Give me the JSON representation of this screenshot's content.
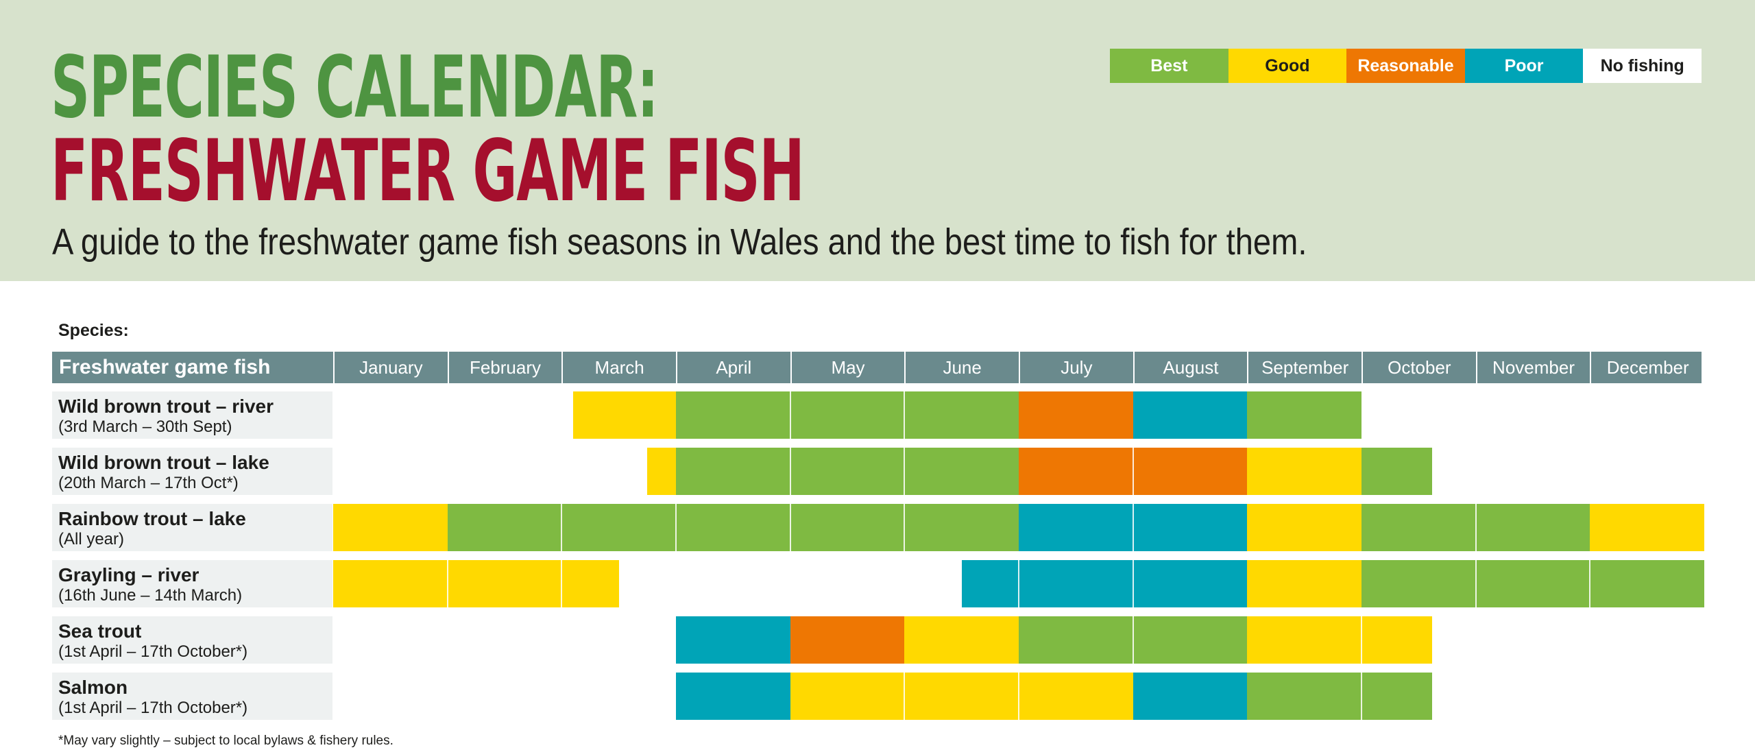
{
  "title": {
    "line1": "SPECIES CALENDAR:",
    "line2": "FRESHWATER GAME FISH",
    "subtitle": "A guide to the freshwater game fish seasons in Wales and the best time to fish for them."
  },
  "legend": [
    {
      "key": "best",
      "label": "Best",
      "color": "#7fba42"
    },
    {
      "key": "good",
      "label": "Good",
      "color": "#ffd900"
    },
    {
      "key": "reasonable",
      "label": "Reasonable",
      "color": "#ee7703"
    },
    {
      "key": "poor",
      "label": "Poor",
      "color": "#00a4b7"
    },
    {
      "key": "none",
      "label": "No fishing",
      "color": "#ffffff"
    }
  ],
  "species_label": "Species:",
  "footnote": "*May vary slightly – subject to local bylaws & fishery rules.",
  "chart_data": {
    "type": "table",
    "header_title": "Freshwater game fish",
    "months": [
      "January",
      "February",
      "March",
      "April",
      "May",
      "June",
      "July",
      "August",
      "September",
      "October",
      "November",
      "December"
    ],
    "x_unit": "month of year (1 = start of January, 13 = end of December)",
    "rows": [
      {
        "name": "Wild brown trout – river",
        "dates": "(3rd March – 30th Sept)",
        "segments": [
          {
            "from": 3.1,
            "to": 4,
            "rating": "good"
          },
          {
            "from": 4,
            "to": 7,
            "rating": "best"
          },
          {
            "from": 7,
            "to": 8,
            "rating": "reasonable"
          },
          {
            "from": 8,
            "to": 9,
            "rating": "poor"
          },
          {
            "from": 9,
            "to": 10,
            "rating": "best"
          }
        ]
      },
      {
        "name": "Wild brown trout – lake",
        "dates": "(20th March – 17th Oct*)",
        "segments": [
          {
            "from": 3.75,
            "to": 4,
            "rating": "good"
          },
          {
            "from": 4,
            "to": 7,
            "rating": "best"
          },
          {
            "from": 7,
            "to": 9,
            "rating": "reasonable"
          },
          {
            "from": 9,
            "to": 10,
            "rating": "good"
          },
          {
            "from": 10,
            "to": 10.62,
            "rating": "best"
          }
        ]
      },
      {
        "name": "Rainbow trout – lake",
        "dates": "(All year)",
        "segments": [
          {
            "from": 1,
            "to": 2,
            "rating": "good"
          },
          {
            "from": 2,
            "to": 7,
            "rating": "best"
          },
          {
            "from": 7,
            "to": 9,
            "rating": "poor"
          },
          {
            "from": 9,
            "to": 10,
            "rating": "good"
          },
          {
            "from": 10,
            "to": 12,
            "rating": "best"
          },
          {
            "from": 12,
            "to": 13,
            "rating": "good"
          }
        ]
      },
      {
        "name": "Grayling – river",
        "dates": "(16th June – 14th March)",
        "segments": [
          {
            "from": 1,
            "to": 3.5,
            "rating": "good"
          },
          {
            "from": 6.5,
            "to": 9,
            "rating": "poor"
          },
          {
            "from": 9,
            "to": 10,
            "rating": "good"
          },
          {
            "from": 10,
            "to": 13,
            "rating": "best"
          }
        ]
      },
      {
        "name": "Sea trout",
        "dates": "(1st April – 17th October*)",
        "segments": [
          {
            "from": 4,
            "to": 5,
            "rating": "poor"
          },
          {
            "from": 5,
            "to": 6,
            "rating": "reasonable"
          },
          {
            "from": 6,
            "to": 7,
            "rating": "good"
          },
          {
            "from": 7,
            "to": 9,
            "rating": "best"
          },
          {
            "from": 9,
            "to": 10.62,
            "rating": "good"
          }
        ]
      },
      {
        "name": "Salmon",
        "dates": "(1st April – 17th October*)",
        "segments": [
          {
            "from": 4,
            "to": 5,
            "rating": "poor"
          },
          {
            "from": 5,
            "to": 8,
            "rating": "good"
          },
          {
            "from": 8,
            "to": 9,
            "rating": "poor"
          },
          {
            "from": 9,
            "to": 10.62,
            "rating": "best"
          }
        ]
      }
    ]
  }
}
